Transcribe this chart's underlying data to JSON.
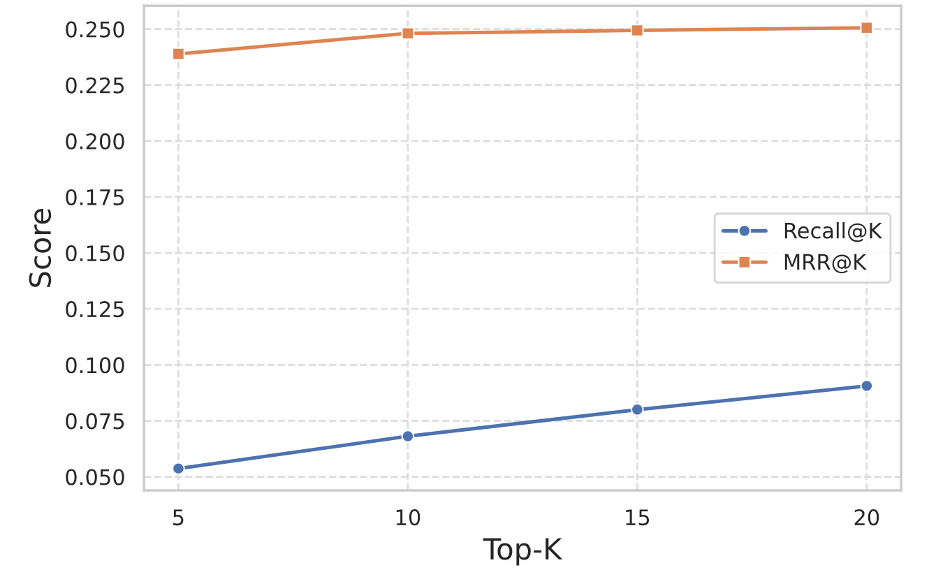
{
  "chart_data": {
    "type": "line",
    "xlabel": "Top-K",
    "ylabel": "Score",
    "x": [
      5,
      10,
      15,
      20
    ],
    "series": [
      {
        "name": "Recall@K",
        "color": "#4c72b0",
        "marker": "circle",
        "values": [
          0.0537,
          0.0681,
          0.08,
          0.0906
        ]
      },
      {
        "name": "MRR@K",
        "color": "#dd8452",
        "marker": "square",
        "values": [
          0.2389,
          0.2481,
          0.2494,
          0.2506
        ]
      }
    ],
    "xlim": [
      4.25,
      20.75
    ],
    "xticks": [
      5,
      10,
      15,
      20
    ],
    "ylim": [
      0.0439,
      0.2604
    ],
    "yticks": [
      {
        "value": 0.05,
        "label": "0.050"
      },
      {
        "value": 0.075,
        "label": "0.075"
      },
      {
        "value": 0.1,
        "label": "0.100"
      },
      {
        "value": 0.125,
        "label": "0.125"
      },
      {
        "value": 0.15,
        "label": "0.150"
      },
      {
        "value": 0.175,
        "label": "0.175"
      },
      {
        "value": 0.2,
        "label": "0.200"
      },
      {
        "value": 0.225,
        "label": "0.225"
      },
      {
        "value": 0.25,
        "label": "0.250"
      }
    ],
    "grid": true,
    "legend": "right",
    "line_style": "solid"
  }
}
